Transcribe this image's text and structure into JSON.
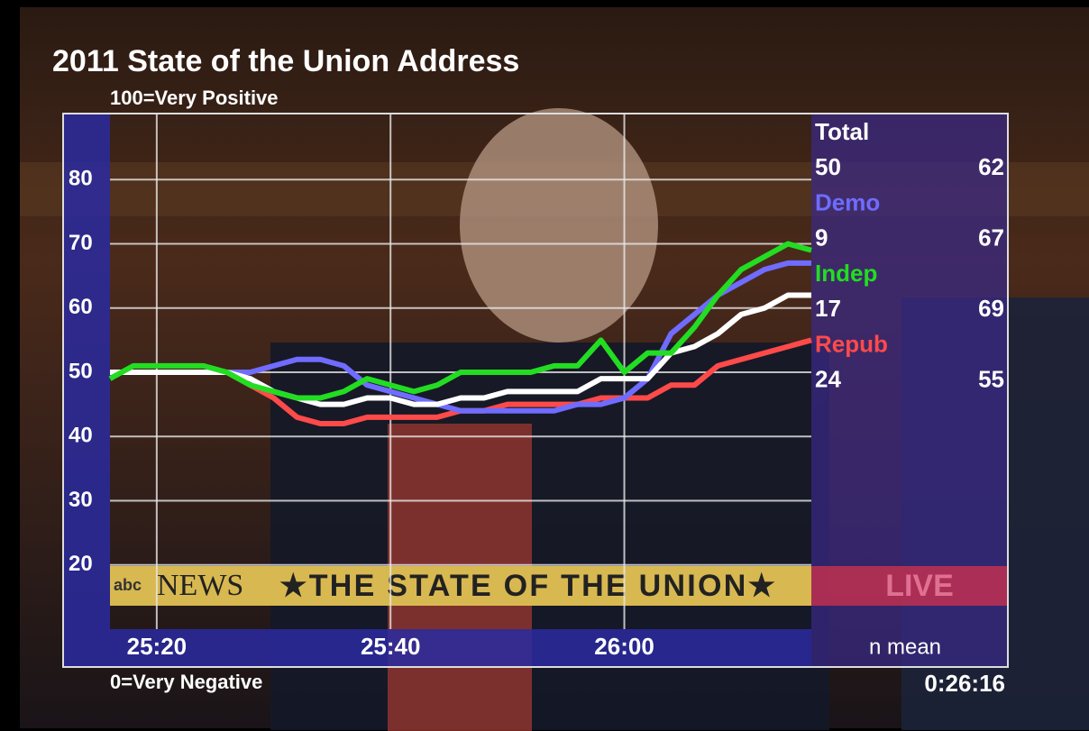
{
  "chart_data": {
    "type": "line",
    "title": "2011 State of the Union Address",
    "subtitle": "100=Very Positive",
    "bottom_note": "0=Very Negative",
    "panel_header": "n mean",
    "timestamp": "0:26:16",
    "x": [
      1516,
      1518,
      1520,
      1522,
      1524,
      1526,
      1528,
      1530,
      1532,
      1534,
      1536,
      1538,
      1540,
      1542,
      1544,
      1546,
      1548,
      1550,
      1552,
      1554,
      1556,
      1558,
      1560,
      1562,
      1564,
      1566,
      1568,
      1570,
      1572,
      1574,
      1576
    ],
    "xlim": [
      1516,
      1576
    ],
    "xticks": [
      {
        "value": 1520,
        "label": "25:20"
      },
      {
        "value": 1540,
        "label": "25:40"
      },
      {
        "value": 1560,
        "label": "26:00"
      }
    ],
    "ylim": [
      10,
      90
    ],
    "yticks": [
      20,
      30,
      40,
      50,
      60,
      70,
      80
    ],
    "grid": true,
    "series": [
      {
        "name": "Total",
        "color": "#ffffff",
        "n": 50,
        "mean": 62,
        "values": [
          50,
          50,
          50,
          50,
          50,
          50,
          49,
          47,
          46,
          45,
          45,
          46,
          46,
          45,
          45,
          46,
          46,
          47,
          47,
          47,
          47,
          49,
          49,
          49,
          53,
          54,
          56,
          59,
          60,
          62,
          62
        ]
      },
      {
        "name": "Demo",
        "color": "#6f6cff",
        "n": 9,
        "mean": 67,
        "values": [
          50,
          50,
          50,
          50,
          50,
          50,
          50,
          51,
          52,
          52,
          51,
          48,
          47,
          46,
          45,
          44,
          44,
          44,
          44,
          44,
          45,
          45,
          46,
          49,
          56,
          59,
          62,
          64,
          66,
          67,
          67
        ]
      },
      {
        "name": "Indep",
        "color": "#22dd22",
        "n": 17,
        "mean": 69,
        "values": [
          49,
          51,
          51,
          51,
          51,
          50,
          48,
          47,
          46,
          46,
          47,
          49,
          48,
          47,
          48,
          50,
          50,
          50,
          50,
          51,
          51,
          55,
          50,
          53,
          53,
          57,
          62,
          66,
          68,
          70,
          69
        ]
      },
      {
        "name": "Repub",
        "color": "#ff4a4a",
        "n": 24,
        "mean": 55,
        "values": [
          50,
          50,
          50,
          50,
          50,
          50,
          48,
          46,
          43,
          42,
          42,
          43,
          43,
          43,
          43,
          44,
          44,
          45,
          45,
          45,
          45,
          46,
          46,
          46,
          48,
          48,
          51,
          52,
          53,
          54,
          55
        ]
      }
    ]
  },
  "banner": {
    "logo": "abc",
    "news": "NEWS",
    "text": "★THE STATE OF THE UNION★",
    "live": "LIVE"
  }
}
